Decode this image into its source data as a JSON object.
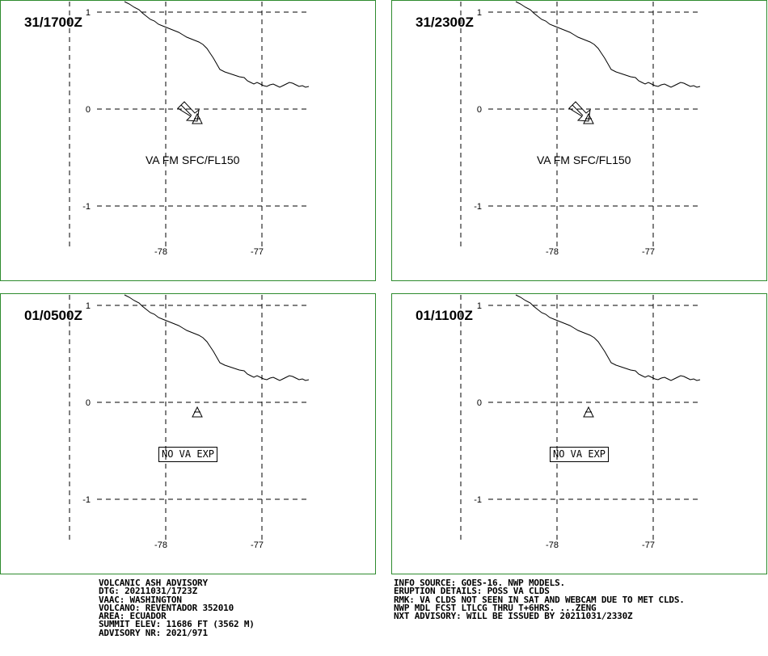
{
  "colors": {
    "border": "#2e8b2e",
    "grid": "#000000",
    "coast": "#000000"
  },
  "panels": [
    {
      "time": "31/1700Z",
      "ash_text": "VA FM SFC/FL150",
      "no_va": "",
      "wind_arrow": true
    },
    {
      "time": "31/2300Z",
      "ash_text": "VA FM SFC/FL150",
      "no_va": "",
      "wind_arrow": true
    },
    {
      "time": "01/0500Z",
      "ash_text": "",
      "no_va": "NO VA EXP",
      "wind_arrow": false
    },
    {
      "time": "01/1100Z",
      "ash_text": "",
      "no_va": "NO VA EXP",
      "wind_arrow": false
    }
  ],
  "axes": {
    "lat_labels": [
      "1",
      "0",
      "-1"
    ],
    "lon_labels": [
      "-78",
      "-77"
    ]
  },
  "volcano_icon": "volcano-triangle-icon",
  "advisory_left": [
    "VOLCANIC ASH ADVISORY",
    "DTG: 20211031/1723Z",
    "VAAC: WASHINGTON",
    "VOLCANO: REVENTADOR 352010",
    "AREA: ECUADOR",
    "SUMMIT ELEV: 11686 FT (3562 M)",
    "ADVISORY NR: 2021/971"
  ],
  "advisory_right": [
    "INFO SOURCE: GOES-16. NWP MODELS.",
    "ERUPTION DETAILS: POSS VA CLDS",
    "RMK: VA CLDS NOT SEEN IN SAT AND WEBCAM DUE TO MET CLDS.",
    "NWP MDL FCST LTLCG THRU T+6HRS. ...ZENG",
    "NXT ADVISORY: WILL BE ISSUED BY 20211031/2330Z"
  ]
}
